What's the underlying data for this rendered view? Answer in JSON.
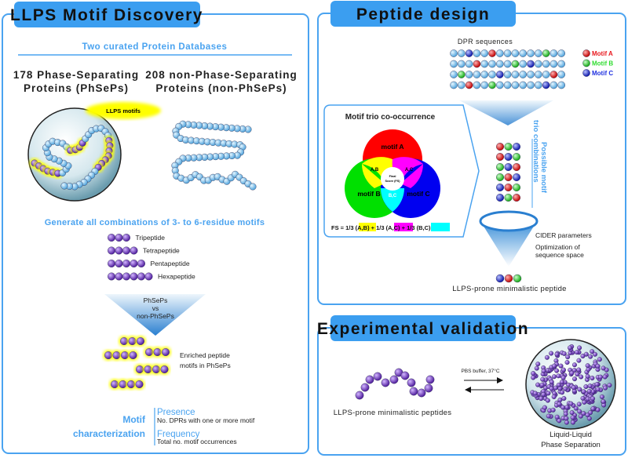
{
  "panels": {
    "discovery": {
      "title": "LLPS Motif Discovery",
      "databases_heading": "Two curated Protein Databases",
      "phseps_line1": "178 Phase-Separating",
      "phseps_line2": "Proteins (PhSePs)",
      "nonphseps_line1": "208 non-Phase-Separating",
      "nonphseps_line2": "Proteins (non-PhSePs)",
      "llps_motifs_label": "LLPS motifs",
      "generate_heading": "Generate all combinations of 3- to 6-residue motifs",
      "motif_lengths": [
        {
          "label": "Tripeptide",
          "residues": 3
        },
        {
          "label": "Tetrapeptide",
          "residues": 4
        },
        {
          "label": "Pentapeptide",
          "residues": 5
        },
        {
          "label": "Hexapeptide",
          "residues": 6
        }
      ],
      "comparison_line1": "PhSePs",
      "comparison_line2": "vs",
      "comparison_line3": "non-PhSePs",
      "enriched_line1": "Enriched peptide",
      "enriched_line2": "motifs in PhSePs",
      "characterization_line1": "Motif",
      "characterization_line2": "characterization",
      "presence_title": "Presence",
      "presence_desc": "No. DPRs with one or more motif",
      "frequency_title": "Frequency",
      "frequency_desc": "Total no. motif occurrences"
    },
    "design": {
      "title": "Peptide design",
      "dpr_label": "DPR sequences",
      "dpr_sequences": [
        "xxCxxAxxxxxxBxx",
        "xxxAxxxxBxCxxxx",
        "xBxxxxCxxxxxxAx",
        "xxAxxBxxxxxxCxx"
      ],
      "legend": [
        {
          "key": "A",
          "label": "Motif A",
          "color": "#e8181e"
        },
        {
          "key": "B",
          "label": "Motif B",
          "color": "#2fdc2f"
        },
        {
          "key": "C",
          "label": "Motif C",
          "color": "#1f30e0"
        }
      ],
      "cooccurrence_title": "Motif trio co-occurrence",
      "venn": {
        "a": "motif A",
        "b": "motif B",
        "c": "motif C",
        "ab": "A,B",
        "ac": "A,C",
        "bc": "B,C",
        "center_line1": "Final",
        "center_line2": "Score (FS)"
      },
      "formula": {
        "prefix": "FS = 1/3 ",
        "t1": "(A,B)",
        "plus1": " + 1/3 ",
        "t2": "(A,C)",
        "plus2": " + 1/3 ",
        "t3": "(B,C)"
      },
      "trio_label_line1": "Possible motif",
      "trio_label_line2": "trio combinations",
      "trio_combinations": [
        "ABC",
        "ACB",
        "BCA",
        "BAC",
        "CAB",
        "CBA"
      ],
      "cider_label": "CIDER parameters",
      "optimization_line1": "Optimization of",
      "optimization_line2": "sequence space",
      "final_peptide": "CAB",
      "result_label": "LLPS-prone minimalistic peptide"
    },
    "validation": {
      "title": "Experimental validation",
      "peptides_label": "LLPS-prone minimalistic peptides",
      "condition": "PBS buffer, 37°C",
      "lps_line1": "Liquid-Liquid",
      "lps_line2": "Phase Separation"
    }
  },
  "colors": {
    "accent": "#4aa3f0",
    "tab": "#3b9ef0",
    "purple": "#7a3cc8",
    "bead_blue": "#8cc8f0",
    "highlight": "#ffff00"
  }
}
